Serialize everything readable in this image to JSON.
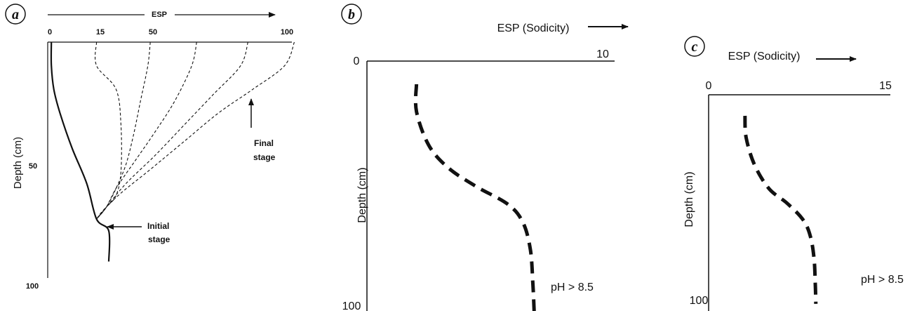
{
  "chart_data": [
    {
      "panel": "a",
      "type": "line",
      "panel_label": "a",
      "xlabel": "ESP",
      "ylabel": "Depth (cm)",
      "x_axis_position": "top",
      "xlim": [
        0,
        100
      ],
      "ylim": [
        0,
        100
      ],
      "y_inverted": true,
      "x_ticks": [
        "0",
        "15",
        "50",
        "100"
      ],
      "y_ticks": [
        "50",
        "100"
      ],
      "series": [
        {
          "style": "solid",
          "x": [
            1.5,
            1.5,
            2.5,
            5,
            10,
            16,
            20,
            25,
            25
          ],
          "y": [
            0,
            10,
            20,
            30,
            45,
            60,
            75,
            80,
            93
          ]
        },
        {
          "style": "dashed",
          "x": [
            20,
            20,
            28,
            30,
            30,
            28,
            24,
            20
          ],
          "y": [
            0,
            10,
            20,
            35,
            55,
            65,
            70,
            75
          ]
        },
        {
          "style": "dashed",
          "x": [
            42,
            41,
            38,
            35,
            32,
            28,
            24,
            20
          ],
          "y": [
            0,
            10,
            25,
            40,
            52,
            62,
            70,
            75
          ]
        },
        {
          "style": "dashed",
          "x": [
            61,
            59,
            52,
            44,
            36,
            28,
            24,
            20
          ],
          "y": [
            0,
            10,
            25,
            38,
            50,
            62,
            70,
            75
          ]
        },
        {
          "style": "dashed",
          "x": [
            82,
            79,
            68,
            56,
            44,
            32,
            24,
            20
          ],
          "y": [
            0,
            10,
            22,
            35,
            48,
            60,
            70,
            75
          ]
        },
        {
          "style": "dashed",
          "x": [
            101,
            97,
            84,
            70,
            56,
            42,
            30,
            23,
            20
          ],
          "y": [
            0,
            10,
            20,
            30,
            42,
            54,
            64,
            71,
            75
          ]
        }
      ],
      "annotations": [
        {
          "text": "Final stage",
          "lines": [
            "Final",
            "stage"
          ]
        },
        {
          "text": "Initial stage",
          "lines": [
            "Initial",
            "stage"
          ]
        }
      ]
    },
    {
      "panel": "b",
      "type": "line",
      "panel_label": "b",
      "xlabel": "ESP (Sodicity)",
      "ylabel": "Depth (cm)",
      "x_axis_position": "top",
      "xlim": [
        0,
        10
      ],
      "ylim": [
        0,
        100
      ],
      "y_inverted": true,
      "x_tick_labels": {
        "left": "0",
        "right": "10"
      },
      "y_ticks": [
        "0",
        "100"
      ],
      "series": [
        {
          "style": "dashed",
          "x": [
            2.0,
            2.0,
            2.5,
            3.3,
            4.4,
            5.7,
            6.3,
            6.6,
            6.7,
            6.75
          ],
          "y": [
            0,
            12,
            27,
            37,
            45,
            53,
            61,
            73,
            88,
            100
          ]
        }
      ],
      "annotations": [
        {
          "text": "pH > 8.5"
        }
      ]
    },
    {
      "panel": "c",
      "type": "line",
      "panel_label": "c",
      "xlabel": "ESP (Sodicity)",
      "ylabel": "Depth (cm)",
      "x_axis_position": "top",
      "xlim": [
        0,
        15
      ],
      "ylim": [
        0,
        100
      ],
      "y_inverted": true,
      "x_ticks": [
        "0",
        "15"
      ],
      "y_ticks": [
        "100"
      ],
      "series": [
        {
          "style": "dashed",
          "x": [
            3.0,
            3.1,
            3.8,
            5.0,
            6.5,
            7.8,
            8.4,
            8.7,
            8.8,
            8.85
          ],
          "y": [
            0,
            12,
            27,
            40,
            48,
            57,
            66,
            78,
            91,
            103
          ]
        }
      ],
      "annotations": [
        {
          "text": "pH > 8.5"
        }
      ]
    }
  ]
}
